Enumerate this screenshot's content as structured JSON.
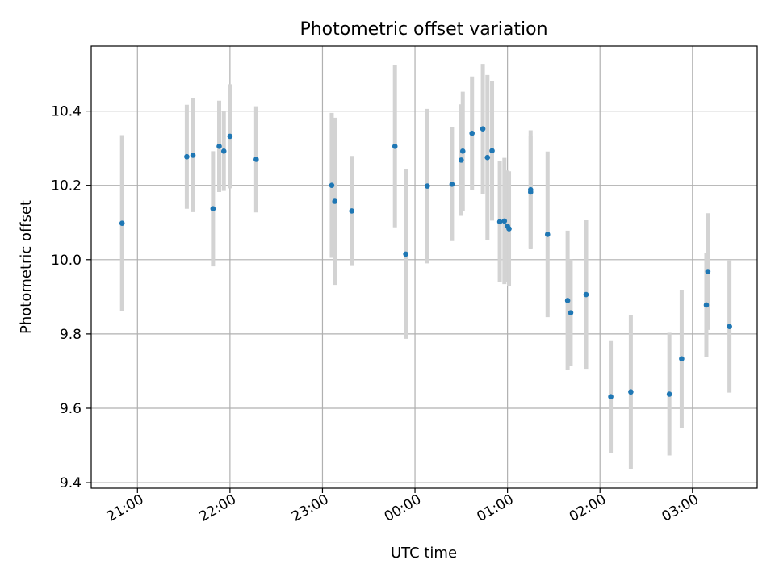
{
  "chart_data": {
    "type": "scatter",
    "title": "Photometric offset variation",
    "xlabel": "UTC time",
    "ylabel": "Photometric offset",
    "x_axis_kind": "time",
    "x_ticks": [
      "21:00",
      "22:00",
      "23:00",
      "00:00",
      "01:00",
      "02:00",
      "03:00"
    ],
    "xlim": [
      "20:30",
      "03:42"
    ],
    "y_ticks": [
      "9.4",
      "9.6",
      "9.8",
      "10.0",
      "10.2",
      "10.4"
    ],
    "ylim": [
      9.385,
      10.575
    ],
    "grid": true,
    "colors": {
      "point": "#1f77b4",
      "errorbar": "#d3d3d3",
      "grid": "#b0b0b0",
      "axes": "#000000"
    },
    "series": [
      {
        "points": [
          {
            "time": "20:50",
            "y": 10.098,
            "yerr": 0.237
          },
          {
            "time": "21:32",
            "y": 10.277,
            "yerr": 0.14
          },
          {
            "time": "21:36",
            "y": 10.281,
            "yerr": 0.153
          },
          {
            "time": "21:49",
            "y": 10.137,
            "yerr": 0.155
          },
          {
            "time": "21:53",
            "y": 10.305,
            "yerr": 0.123
          },
          {
            "time": "21:56",
            "y": 10.292,
            "yerr": 0.107
          },
          {
            "time": "22:00",
            "y": 10.332,
            "yerr": 0.14
          },
          {
            "time": "22:17",
            "y": 10.27,
            "yerr": 0.143
          },
          {
            "time": "23:06",
            "y": 10.2,
            "yerr": 0.195
          },
          {
            "time": "23:08",
            "y": 10.157,
            "yerr": 0.225
          },
          {
            "time": "23:19",
            "y": 10.131,
            "yerr": 0.148
          },
          {
            "time": "23:47",
            "y": 10.305,
            "yerr": 0.218
          },
          {
            "time": "23:54",
            "y": 10.015,
            "yerr": 0.228
          },
          {
            "time": "00:08",
            "y": 10.198,
            "yerr": 0.208
          },
          {
            "time": "00:24",
            "y": 10.203,
            "yerr": 0.153
          },
          {
            "time": "00:30",
            "y": 10.268,
            "yerr": 0.15
          },
          {
            "time": "00:31",
            "y": 10.292,
            "yerr": 0.16
          },
          {
            "time": "00:37",
            "y": 10.34,
            "yerr": 0.153
          },
          {
            "time": "00:44",
            "y": 10.352,
            "yerr": 0.175
          },
          {
            "time": "00:47",
            "y": 10.275,
            "yerr": 0.222
          },
          {
            "time": "00:50",
            "y": 10.293,
            "yerr": 0.188
          },
          {
            "time": "00:55",
            "y": 10.102,
            "yerr": 0.163
          },
          {
            "time": "00:58",
            "y": 10.104,
            "yerr": 0.17
          },
          {
            "time": "01:00",
            "y": 10.09,
            "yerr": 0.15
          },
          {
            "time": "01:01",
            "y": 10.083,
            "yerr": 0.155
          },
          {
            "time": "01:15",
            "y": 10.182,
            "yerr": 0.15
          },
          {
            "time": "01:15",
            "y": 10.188,
            "yerr": 0.16
          },
          {
            "time": "01:26",
            "y": 10.068,
            "yerr": 0.223
          },
          {
            "time": "01:39",
            "y": 9.89,
            "yerr": 0.188
          },
          {
            "time": "01:41",
            "y": 9.857,
            "yerr": 0.143
          },
          {
            "time": "01:51",
            "y": 9.906,
            "yerr": 0.2
          },
          {
            "time": "02:07",
            "y": 9.631,
            "yerr": 0.152
          },
          {
            "time": "02:20",
            "y": 9.644,
            "yerr": 0.207
          },
          {
            "time": "02:45",
            "y": 9.638,
            "yerr": 0.165
          },
          {
            "time": "02:53",
            "y": 9.733,
            "yerr": 0.185
          },
          {
            "time": "03:09",
            "y": 9.878,
            "yerr": 0.14
          },
          {
            "time": "03:10",
            "y": 9.968,
            "yerr": 0.157
          },
          {
            "time": "03:24",
            "y": 9.82,
            "yerr": 0.178
          }
        ]
      }
    ]
  }
}
